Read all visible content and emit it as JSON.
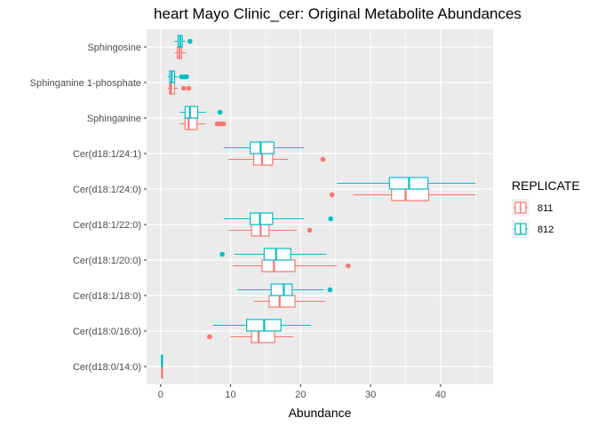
{
  "chart_data": {
    "type": "boxplot",
    "orientation": "horizontal",
    "title": "heart Mayo Clinic_cer: Original Metabolite Abundances",
    "xlabel": "Abundance",
    "ylabel": "",
    "xlim": [
      -2,
      47.5
    ],
    "xticks": [
      0,
      10,
      20,
      30,
      40
    ],
    "grid": true,
    "legend": {
      "title": "REPLICATE",
      "position": "right"
    },
    "colors": {
      "811": "#F8766D",
      "812": "#00BFC4",
      "panel": "#EBEBEB",
      "grid": "#FFFFFF"
    },
    "categories": [
      "Cer(d18:0/14:0)",
      "Cer(d18:0/16:0)",
      "Cer(d18:1/18:0)",
      "Cer(d18:1/20:0)",
      "Cer(d18:1/22:0)",
      "Cer(d18:1/24:0)",
      "Cer(d18:1/24:1)",
      "Sphinganine",
      "Sphinganine 1-phosphate",
      "Sphingosine"
    ],
    "series": [
      {
        "name": "811",
        "boxes": [
          {
            "category": "Cer(d18:0/14:0)",
            "whisker_low": 0.1,
            "q1": 0.15,
            "median": 0.2,
            "q3": 0.25,
            "whisker_high": 0.3,
            "outliers": []
          },
          {
            "category": "Cer(d18:0/16:0)",
            "whisker_low": 10.0,
            "q1": 13.0,
            "median": 14.0,
            "q3": 16.3,
            "whisker_high": 19.0,
            "outliers": [
              7.0
            ]
          },
          {
            "category": "Cer(d18:1/18:0)",
            "whisker_low": 13.3,
            "q1": 15.5,
            "median": 17.0,
            "q3": 19.2,
            "whisker_high": 23.5,
            "outliers": []
          },
          {
            "category": "Cer(d18:1/20:0)",
            "whisker_low": 10.3,
            "q1": 14.5,
            "median": 16.2,
            "q3": 19.2,
            "whisker_high": 25.2,
            "outliers": [
              26.8
            ]
          },
          {
            "category": "Cer(d18:1/22:0)",
            "whisker_low": 9.7,
            "q1": 13.0,
            "median": 14.3,
            "q3": 15.5,
            "whisker_high": 19.5,
            "outliers": [
              21.3
            ]
          },
          {
            "category": "Cer(d18:1/24:0)",
            "whisker_low": 27.5,
            "q1": 33.0,
            "median": 35.0,
            "q3": 38.3,
            "whisker_high": 45.0,
            "outliers": [
              24.5
            ]
          },
          {
            "category": "Cer(d18:1/24:1)",
            "whisker_low": 9.7,
            "q1": 13.3,
            "median": 14.5,
            "q3": 16.0,
            "whisker_high": 18.2,
            "outliers": [
              23.2
            ]
          },
          {
            "category": "Sphinganine",
            "whisker_low": 2.8,
            "q1": 3.5,
            "median": 4.0,
            "q3": 5.2,
            "whisker_high": 6.5,
            "outliers": [
              8.1,
              8.5,
              9.0
            ]
          },
          {
            "category": "Sphinganine 1-phosphate",
            "whisker_low": 1.0,
            "q1": 1.3,
            "median": 1.5,
            "q3": 2.0,
            "whisker_high": 2.5,
            "outliers": [
              3.3,
              4.0
            ]
          },
          {
            "category": "Sphingosine",
            "whisker_low": 2.0,
            "q1": 2.4,
            "median": 2.7,
            "q3": 3.0,
            "whisker_high": 3.7,
            "outliers": []
          }
        ]
      },
      {
        "name": "812",
        "boxes": [
          {
            "category": "Cer(d18:0/14:0)",
            "whisker_low": 0.1,
            "q1": 0.15,
            "median": 0.2,
            "q3": 0.25,
            "whisker_high": 0.3,
            "outliers": []
          },
          {
            "category": "Cer(d18:0/16:0)",
            "whisker_low": 7.5,
            "q1": 12.3,
            "median": 14.8,
            "q3": 17.2,
            "whisker_high": 21.5,
            "outliers": []
          },
          {
            "category": "Cer(d18:1/18:0)",
            "whisker_low": 11.0,
            "q1": 15.8,
            "median": 17.6,
            "q3": 18.8,
            "whisker_high": 23.3,
            "outliers": [
              24.2
            ]
          },
          {
            "category": "Cer(d18:1/20:0)",
            "whisker_low": 10.5,
            "q1": 14.8,
            "median": 16.5,
            "q3": 18.6,
            "whisker_high": 23.7,
            "outliers": [
              8.8
            ]
          },
          {
            "category": "Cer(d18:1/22:0)",
            "whisker_low": 9.0,
            "q1": 12.8,
            "median": 14.2,
            "q3": 16.0,
            "whisker_high": 20.5,
            "outliers": [
              24.3
            ]
          },
          {
            "category": "Cer(d18:1/24:0)",
            "whisker_low": 25.2,
            "q1": 32.7,
            "median": 35.5,
            "q3": 38.2,
            "whisker_high": 45.0,
            "outliers": []
          },
          {
            "category": "Cer(d18:1/24:1)",
            "whisker_low": 9.0,
            "q1": 12.8,
            "median": 14.3,
            "q3": 16.2,
            "whisker_high": 20.5,
            "outliers": []
          },
          {
            "category": "Sphinganine",
            "whisker_low": 2.8,
            "q1": 3.5,
            "median": 4.2,
            "q3": 5.3,
            "whisker_high": 6.5,
            "outliers": [
              8.5
            ]
          },
          {
            "category": "Sphinganine 1-phosphate",
            "whisker_low": 1.0,
            "q1": 1.3,
            "median": 1.6,
            "q3": 2.0,
            "whisker_high": 2.5,
            "outliers": [
              3.0,
              3.4,
              3.7
            ]
          },
          {
            "category": "Sphingosine",
            "whisker_low": 2.0,
            "q1": 2.5,
            "median": 2.8,
            "q3": 3.1,
            "whisker_high": 3.5,
            "outliers": [
              4.2
            ]
          }
        ]
      }
    ]
  }
}
